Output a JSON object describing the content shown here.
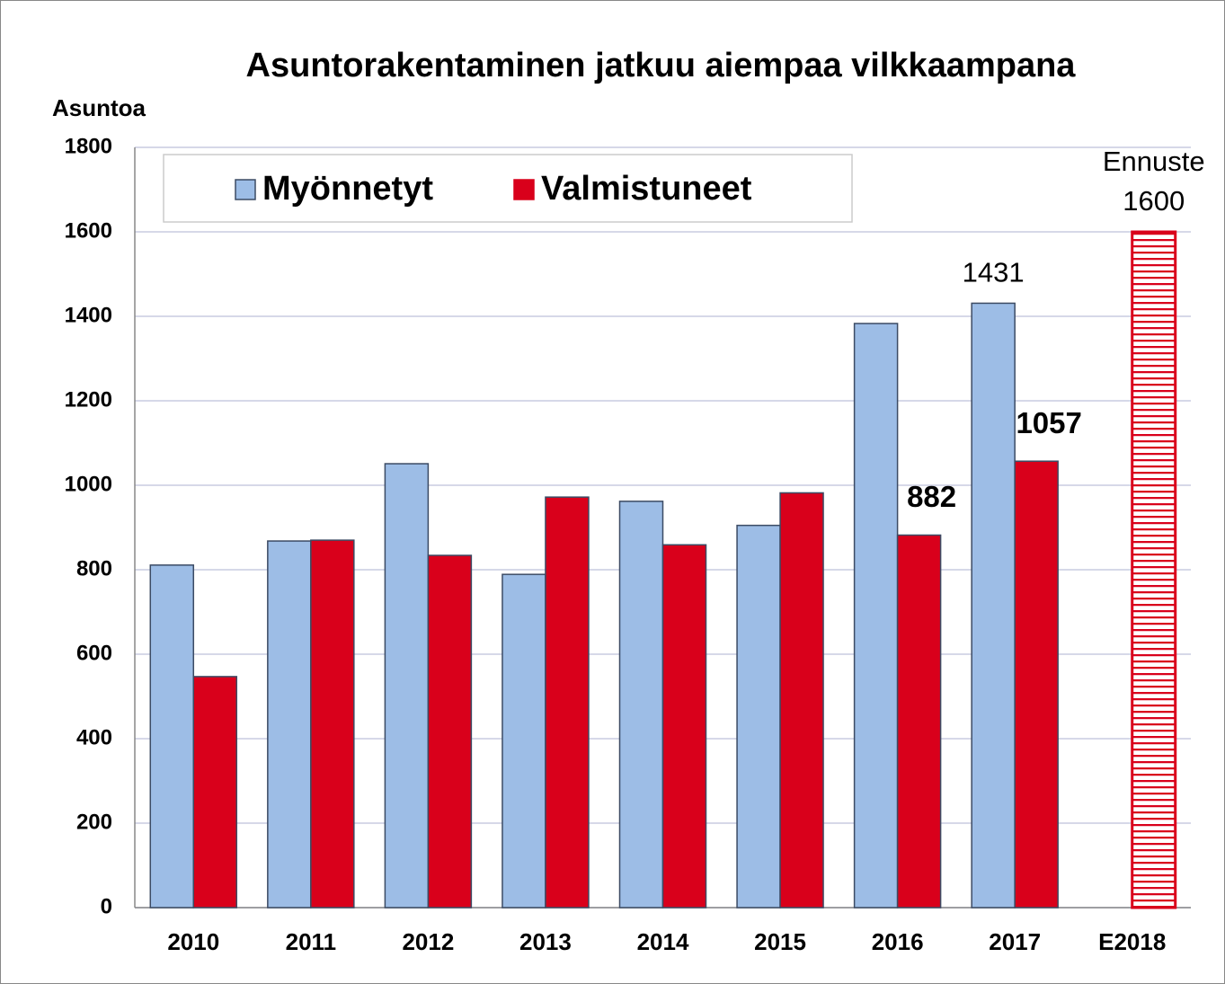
{
  "chart_data": {
    "type": "bar",
    "title": "Asuntorakentaminen jatkuu aiempaa vilkkaampana",
    "y_label": "Asuntoa",
    "categories": [
      "2010",
      "2011",
      "2012",
      "2013",
      "2014",
      "2015",
      "2016",
      "2017",
      "E2018"
    ],
    "series": [
      {
        "name": "Myönnetyt",
        "color": "#9dbde6",
        "values": [
          811,
          868,
          1051,
          789,
          962,
          905,
          1383,
          1431,
          null
        ],
        "show_labels": [
          false,
          false,
          false,
          false,
          false,
          false,
          false,
          true,
          false
        ],
        "hatched": [
          false,
          false,
          false,
          false,
          false,
          false,
          false,
          false,
          false
        ]
      },
      {
        "name": "Valmistuneet",
        "color": "#d9001b",
        "values": [
          547,
          870,
          834,
          972,
          859,
          982,
          882,
          1057,
          1600
        ],
        "show_labels": [
          false,
          false,
          false,
          false,
          false,
          false,
          true,
          true,
          true
        ],
        "hatched": [
          false,
          false,
          false,
          false,
          false,
          false,
          false,
          false,
          true
        ]
      }
    ],
    "annotations": [
      {
        "text": "Ennuste",
        "x": "E2018"
      }
    ],
    "ylim": [
      0,
      1800
    ],
    "yticks": [
      0,
      200,
      400,
      600,
      800,
      1000,
      1200,
      1400,
      1600,
      1800
    ],
    "grid": true,
    "legend": "top-left"
  }
}
